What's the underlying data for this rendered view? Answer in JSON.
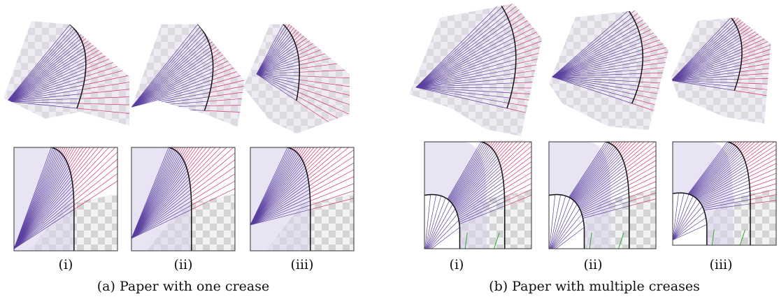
{
  "panels": [
    {
      "caption": "(a) Paper with one crease",
      "labels": [
        "(i)",
        "(ii)",
        "(iii)"
      ]
    },
    {
      "caption": "(b) Paper with multiple creases",
      "labels": [
        "(i)",
        "(ii)",
        "(iii)"
      ]
    }
  ]
}
